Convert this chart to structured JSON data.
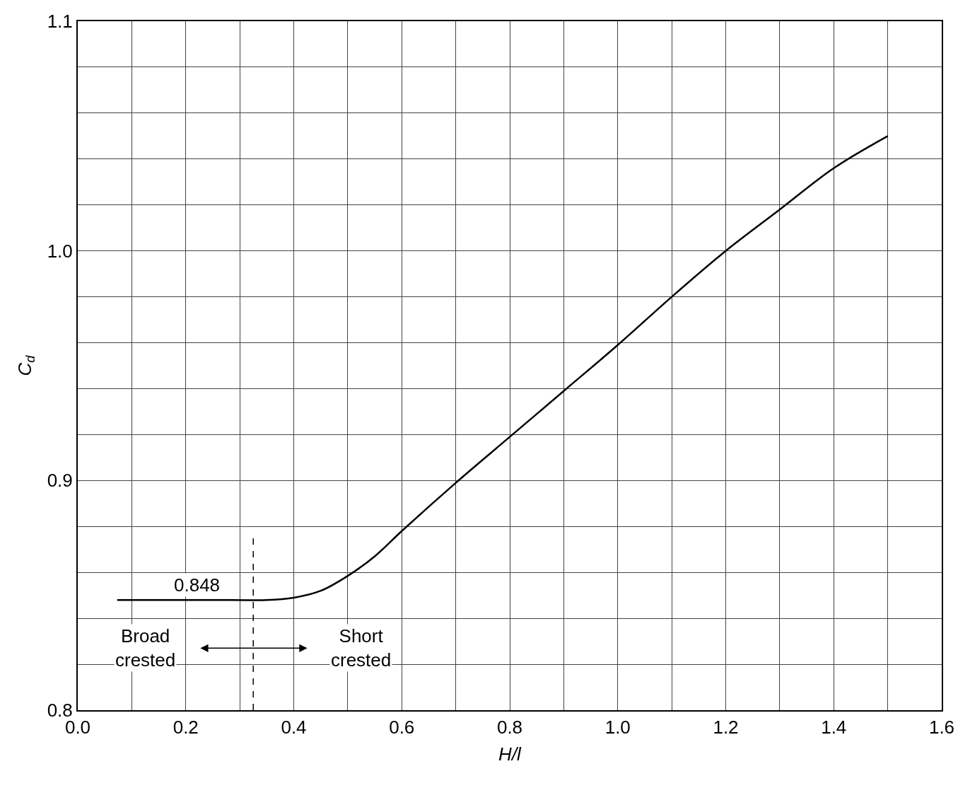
{
  "chart_data": {
    "type": "line",
    "xlabel": "H/l",
    "ylabel": "C$_{d}$",
    "x": [
      0.073,
      0.15,
      0.25,
      0.349,
      0.4,
      0.45,
      0.5,
      0.55,
      0.6,
      0.7,
      0.8,
      0.9,
      1.0,
      1.1,
      1.2,
      1.3,
      1.4,
      1.5
    ],
    "series": [
      {
        "color": "#000000",
        "values": [
          0.848,
          0.848,
          0.848,
          0.848,
          0.849,
          0.852,
          0.8585,
          0.867,
          0.878,
          0.899,
          0.919,
          0.939,
          0.959,
          0.98,
          1.0,
          1.018,
          1.036,
          1.05
        ]
      }
    ],
    "xlim": [
      0.0,
      1.6
    ],
    "ylim": [
      0.8,
      1.1
    ],
    "xticks": [
      {
        "value": 0.0,
        "label": "0.0"
      },
      {
        "value": 0.1,
        "label": null
      },
      0.2,
      {
        "value": 0.3,
        "label": null
      },
      0.4,
      {
        "value": 0.5,
        "label": null
      },
      0.6,
      {
        "value": 0.7,
        "label": null
      },
      0.8,
      {
        "value": 0.9,
        "label": null
      },
      {
        "value": 1.0,
        "label": "1.0"
      },
      {
        "value": 1.1,
        "label": null
      },
      1.2,
      {
        "value": 1.3,
        "label": null
      },
      1.4,
      {
        "value": 1.5,
        "label": null
      },
      1.6
    ],
    "yticks": [
      0.8,
      {
        "value": 0.82,
        "label": null
      },
      {
        "value": 0.84,
        "label": null
      },
      {
        "value": 0.86,
        "label": null
      },
      {
        "value": 0.88,
        "label": null
      },
      0.9,
      {
        "value": 0.92,
        "label": null
      },
      {
        "value": 0.94,
        "label": null
      },
      {
        "value": 0.96,
        "label": null
      },
      {
        "value": 0.98,
        "label": null
      },
      {
        "value": 1.0,
        "label": "1.0"
      },
      {
        "value": 1.02,
        "label": null
      },
      {
        "value": 1.04,
        "label": null
      },
      {
        "value": 1.06,
        "label": null
      },
      {
        "value": 1.08,
        "label": null
      },
      1.1
    ],
    "grid": true,
    "legend": false,
    "marker": "none",
    "line_style": "solid",
    "ref_lines": [
      {
        "axis": "x",
        "value": 0.325,
        "line_style": "dashed",
        "color": "#000000"
      }
    ],
    "annotations": [
      {
        "text": "0.848",
        "x": 0.22,
        "y": 0.848
      },
      "Broad\ncrested",
      "Short\ncrested"
    ]
  }
}
